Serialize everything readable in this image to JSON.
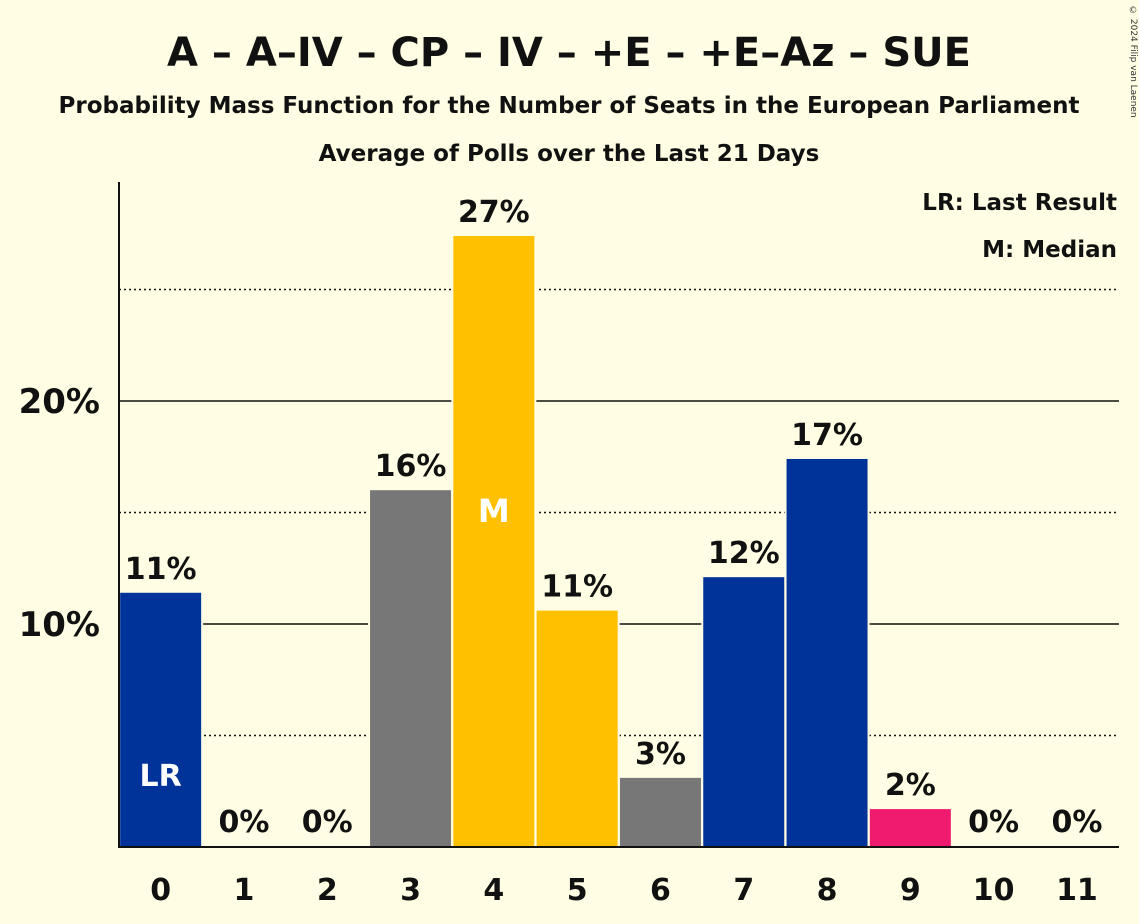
{
  "chart_data": {
    "type": "bar",
    "title": "A – A–IV – CP – IV – +E – +E–Az – SUE",
    "subtitle": "Probability Mass Function for the Number of Seats in the European Parliament",
    "subtitle2": "Average of Polls over the Last 21 Days",
    "categories": [
      "0",
      "1",
      "2",
      "3",
      "4",
      "5",
      "6",
      "7",
      "8",
      "9",
      "10",
      "11"
    ],
    "values": [
      11.4,
      0,
      0,
      16.0,
      27.4,
      10.6,
      3.1,
      12.1,
      17.4,
      1.7,
      0,
      0
    ],
    "data_labels": [
      "11%",
      "0%",
      "0%",
      "16%",
      "27%",
      "11%",
      "3%",
      "12%",
      "17%",
      "2%",
      "0%",
      "0%"
    ],
    "bar_colors": [
      "#003399",
      "#003399",
      "#003399",
      "#777777",
      "#ffc000",
      "#ffc000",
      "#777777",
      "#003399",
      "#003399",
      "#f01a6e",
      "#003399",
      "#003399"
    ],
    "ytick_labels": [
      "10%",
      "20%"
    ],
    "yticks": [
      10,
      20
    ],
    "minor_gridlines": [
      5,
      15,
      25
    ],
    "ylim": [
      0,
      30
    ],
    "last_result_index": 0,
    "last_result_marker": "LR",
    "median_index": 4,
    "median_marker": "M",
    "legend": [
      "LR: Last Result",
      "M: Median"
    ],
    "legend_position": "top-right",
    "copyright": "© 2024 Filip van Laenen"
  }
}
